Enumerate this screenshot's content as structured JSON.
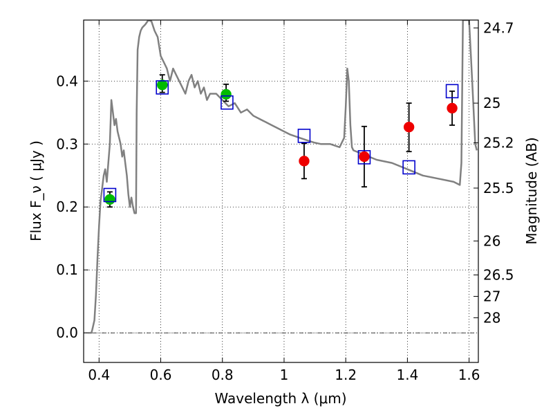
{
  "chart_data": {
    "type": "scatter",
    "xlabel": "Wavelength  λ (μm)",
    "ylabel": "Flux  F_ν  ( μJy )",
    "ylabel_right": "Magnitude (AB)",
    "xlim": [
      0.35,
      1.63
    ],
    "ylim": [
      -0.047,
      0.497
    ],
    "grid": true,
    "x_ticks": [
      0.4,
      0.6,
      0.8,
      1.0,
      1.2,
      1.4,
      1.6
    ],
    "x_tick_labels": [
      "0.4",
      "0.6",
      "0.8",
      "1",
      "1.2",
      "1.4",
      "1.6"
    ],
    "y_ticks": [
      0.0,
      0.1,
      0.2,
      0.3,
      0.4
    ],
    "y_tick_labels": [
      "0.0",
      "0.1",
      "0.2",
      "0.3",
      "0.4"
    ],
    "right_ticks": [
      {
        "flux": 0.4845,
        "label": "24.7"
      },
      {
        "flux": 0.365,
        "label": "25"
      },
      {
        "flux": 0.302,
        "label": "25.2"
      },
      {
        "flux": 0.23,
        "label": "25.5"
      },
      {
        "flux": 0.146,
        "label": "26"
      },
      {
        "flux": 0.092,
        "label": "26.5"
      },
      {
        "flux": 0.058,
        "label": "27"
      },
      {
        "flux": 0.024,
        "label": "28"
      }
    ],
    "model_sed": {
      "color": "#808080",
      "x": [
        0.365,
        0.375,
        0.378,
        0.385,
        0.39,
        0.395,
        0.4,
        0.405,
        0.41,
        0.415,
        0.42,
        0.425,
        0.43,
        0.435,
        0.44,
        0.445,
        0.45,
        0.455,
        0.46,
        0.465,
        0.47,
        0.475,
        0.48,
        0.485,
        0.49,
        0.495,
        0.5,
        0.505,
        0.51,
        0.515,
        0.52,
        0.522,
        0.525,
        0.53,
        0.535,
        0.54,
        0.55,
        0.56,
        0.57,
        0.58,
        0.59,
        0.6,
        0.61,
        0.62,
        0.63,
        0.64,
        0.65,
        0.66,
        0.67,
        0.68,
        0.69,
        0.7,
        0.71,
        0.72,
        0.73,
        0.74,
        0.75,
        0.76,
        0.78,
        0.8,
        0.82,
        0.84,
        0.86,
        0.88,
        0.9,
        0.92,
        0.94,
        0.96,
        0.98,
        1.0,
        1.02,
        1.05,
        1.08,
        1.1,
        1.12,
        1.15,
        1.18,
        1.195,
        1.2,
        1.205,
        1.21,
        1.215,
        1.22,
        1.225,
        1.25,
        1.3,
        1.35,
        1.4,
        1.45,
        1.5,
        1.55,
        1.57,
        1.575,
        1.58,
        1.6,
        1.61,
        1.62,
        1.625
      ],
      "y": [
        0.0,
        0.0,
        0.005,
        0.02,
        0.06,
        0.12,
        0.17,
        0.21,
        0.23,
        0.25,
        0.26,
        0.24,
        0.27,
        0.3,
        0.37,
        0.35,
        0.33,
        0.34,
        0.32,
        0.31,
        0.3,
        0.28,
        0.29,
        0.27,
        0.25,
        0.22,
        0.2,
        0.215,
        0.2,
        0.19,
        0.19,
        0.35,
        0.45,
        0.47,
        0.48,
        0.485,
        0.49,
        0.497,
        0.495,
        0.48,
        0.47,
        0.44,
        0.43,
        0.42,
        0.4,
        0.42,
        0.41,
        0.4,
        0.39,
        0.38,
        0.4,
        0.41,
        0.39,
        0.4,
        0.38,
        0.39,
        0.37,
        0.38,
        0.38,
        0.37,
        0.36,
        0.365,
        0.35,
        0.355,
        0.345,
        0.34,
        0.335,
        0.33,
        0.325,
        0.32,
        0.315,
        0.31,
        0.305,
        0.302,
        0.3,
        0.3,
        0.295,
        0.31,
        0.36,
        0.42,
        0.4,
        0.33,
        0.295,
        0.29,
        0.285,
        0.275,
        0.27,
        0.26,
        0.25,
        0.245,
        0.24,
        0.235,
        0.27,
        0.497,
        0.497,
        0.4,
        0.3,
        0.29
      ]
    },
    "series": [
      {
        "name": "",
        "marker": "circle",
        "color": "#00bb00",
        "points": [
          {
            "x": 0.435,
            "y": 0.212,
            "yerr": [
              0.012,
              0.012
            ]
          },
          {
            "x": 0.605,
            "y": 0.394,
            "yerr": [
              0.012,
              0.016
            ]
          },
          {
            "x": 0.812,
            "y": 0.379,
            "yerr": [
              0.011,
              0.016
            ]
          }
        ]
      },
      {
        "name": "",
        "marker": "circle",
        "color": "#ee0000",
        "points": [
          {
            "x": 1.065,
            "y": 0.273,
            "yerr": [
              0.028,
              0.028
            ]
          },
          {
            "x": 1.26,
            "y": 0.28,
            "yerr": [
              0.048,
              0.048
            ]
          },
          {
            "x": 1.405,
            "y": 0.327,
            "yerr": [
              0.039,
              0.038
            ]
          },
          {
            "x": 1.545,
            "y": 0.357,
            "yerr": [
              0.027,
              0.027
            ]
          }
        ]
      },
      {
        "name": "",
        "marker": "open-square",
        "color": "#0000cc",
        "points": [
          {
            "x": 0.435,
            "y": 0.219
          },
          {
            "x": 0.605,
            "y": 0.39
          },
          {
            "x": 0.815,
            "y": 0.366
          },
          {
            "x": 1.065,
            "y": 0.313
          },
          {
            "x": 1.26,
            "y": 0.279
          },
          {
            "x": 1.405,
            "y": 0.263
          },
          {
            "x": 1.545,
            "y": 0.384
          }
        ]
      }
    ]
  }
}
